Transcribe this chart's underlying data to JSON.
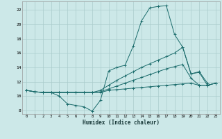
{
  "xlabel": "Humidex (Indice chaleur)",
  "bg_color": "#cce8e8",
  "grid_color": "#aacccc",
  "line_color": "#1a6b6b",
  "x_ticks": [
    0,
    1,
    2,
    3,
    4,
    5,
    6,
    7,
    8,
    9,
    10,
    11,
    12,
    13,
    14,
    15,
    16,
    17,
    18,
    19,
    20,
    21,
    22,
    23
  ],
  "y_ticks": [
    8,
    10,
    12,
    14,
    16,
    18,
    20,
    22
  ],
  "xlim": [
    -0.5,
    23.5
  ],
  "ylim": [
    7.5,
    23.2
  ],
  "line1_x": [
    0,
    1,
    2,
    3,
    4,
    5,
    6,
    7,
    8,
    9,
    10,
    11,
    12,
    13,
    14,
    15,
    16,
    17,
    18,
    19,
    20,
    21,
    22
  ],
  "line1_y": [
    10.8,
    10.6,
    10.5,
    10.5,
    10.0,
    8.9,
    8.7,
    8.5,
    7.9,
    9.4,
    13.5,
    14.0,
    14.3,
    17.0,
    20.5,
    22.3,
    22.5,
    22.6,
    18.6,
    16.8,
    13.1,
    13.4,
    11.8
  ],
  "line2_x": [
    0,
    1,
    2,
    3,
    4,
    5,
    6,
    7,
    8,
    9,
    10,
    11,
    12,
    13,
    14,
    15,
    16,
    17,
    18,
    19,
    20,
    21,
    22,
    23
  ],
  "line2_y": [
    10.8,
    10.6,
    10.5,
    10.5,
    10.5,
    10.5,
    10.5,
    10.5,
    10.5,
    10.8,
    11.5,
    12.2,
    12.8,
    13.4,
    14.0,
    14.5,
    15.0,
    15.5,
    16.0,
    16.8,
    13.1,
    13.3,
    11.5,
    11.8
  ],
  "line3_x": [
    0,
    1,
    2,
    3,
    4,
    5,
    6,
    7,
    8,
    9,
    10,
    11,
    12,
    13,
    14,
    15,
    16,
    17,
    18,
    19,
    20,
    21,
    22,
    23
  ],
  "line3_y": [
    10.8,
    10.6,
    10.5,
    10.5,
    10.5,
    10.5,
    10.5,
    10.5,
    10.5,
    10.6,
    11.0,
    11.4,
    11.8,
    12.2,
    12.6,
    13.0,
    13.4,
    13.8,
    14.1,
    14.4,
    12.5,
    11.5,
    11.5,
    11.8
  ],
  "line4_x": [
    0,
    1,
    2,
    3,
    4,
    5,
    6,
    7,
    8,
    9,
    10,
    11,
    12,
    13,
    14,
    15,
    16,
    17,
    18,
    19,
    20,
    21,
    22,
    23
  ],
  "line4_y": [
    10.8,
    10.6,
    10.5,
    10.5,
    10.5,
    10.5,
    10.5,
    10.5,
    10.5,
    10.5,
    10.8,
    10.9,
    11.0,
    11.1,
    11.2,
    11.3,
    11.4,
    11.5,
    11.6,
    11.7,
    11.8,
    11.5,
    11.5,
    11.8
  ]
}
